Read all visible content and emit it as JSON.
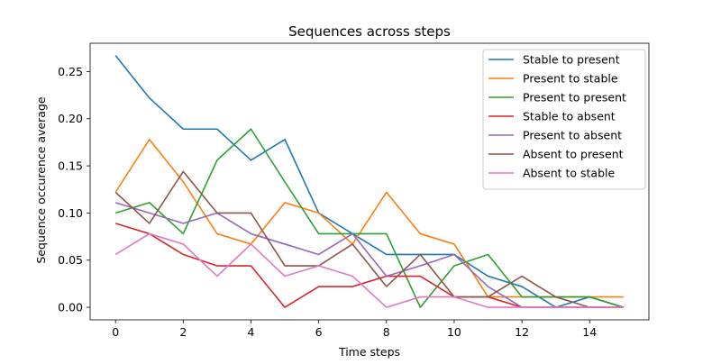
{
  "chart_data": {
    "type": "line",
    "title": "Sequences across steps",
    "xlabel": "Time steps",
    "ylabel": "Sequence occurence average",
    "xlim": [
      -0.75,
      15.75
    ],
    "ylim": [
      -0.0133,
      0.28
    ],
    "xticks": [
      0,
      2,
      4,
      6,
      8,
      10,
      12,
      14
    ],
    "yticks": [
      0.0,
      0.05,
      0.1,
      0.15,
      0.2,
      0.25
    ],
    "ytick_labels": [
      "0.00",
      "0.05",
      "0.10",
      "0.15",
      "0.20",
      "0.25"
    ],
    "grid": false,
    "legend_position": "top-right",
    "x": [
      0,
      1,
      2,
      3,
      4,
      5,
      6,
      7,
      8,
      9,
      10,
      11,
      12,
      13,
      14,
      15
    ],
    "series": [
      {
        "name": "Stable to present",
        "color": "#1f77b4",
        "values": [
          0.267,
          0.222,
          0.189,
          0.189,
          0.156,
          0.178,
          0.1,
          0.078,
          0.056,
          0.056,
          0.056,
          0.033,
          0.022,
          0.0,
          0.011,
          0.0
        ]
      },
      {
        "name": "Present to stable",
        "color": "#ff7f0e",
        "values": [
          0.122,
          0.178,
          0.133,
          0.078,
          0.067,
          0.111,
          0.1,
          0.067,
          0.122,
          0.078,
          0.067,
          0.011,
          0.011,
          0.011,
          0.011,
          0.011
        ]
      },
      {
        "name": "Present to present",
        "color": "#2ca02c",
        "values": [
          0.1,
          0.111,
          0.078,
          0.156,
          0.189,
          0.133,
          0.078,
          0.078,
          0.078,
          0.0,
          0.044,
          0.056,
          0.011,
          0.011,
          0.011,
          0.0
        ]
      },
      {
        "name": "Stable to absent",
        "color": "#d62728",
        "values": [
          0.089,
          0.078,
          0.056,
          0.044,
          0.044,
          0.0,
          0.022,
          0.022,
          0.033,
          0.033,
          0.011,
          0.011,
          0.0,
          0.0,
          0.0,
          0.0
        ]
      },
      {
        "name": "Present to absent",
        "color": "#9467bd",
        "values": [
          0.111,
          0.1,
          0.089,
          0.1,
          0.078,
          0.067,
          0.056,
          0.078,
          0.033,
          0.044,
          0.056,
          0.022,
          0.0,
          0.0,
          0.0,
          0.0
        ]
      },
      {
        "name": "Absent to present",
        "color": "#8c564b",
        "values": [
          0.122,
          0.089,
          0.144,
          0.1,
          0.1,
          0.044,
          0.044,
          0.067,
          0.022,
          0.056,
          0.011,
          0.011,
          0.033,
          0.011,
          0.0,
          0.0
        ]
      },
      {
        "name": "Absent to stable",
        "color": "#e377c2",
        "values": [
          0.056,
          0.078,
          0.067,
          0.033,
          0.067,
          0.033,
          0.044,
          0.033,
          0.0,
          0.011,
          0.011,
          0.0,
          0.0,
          0.0,
          0.0,
          0.0
        ]
      }
    ]
  }
}
